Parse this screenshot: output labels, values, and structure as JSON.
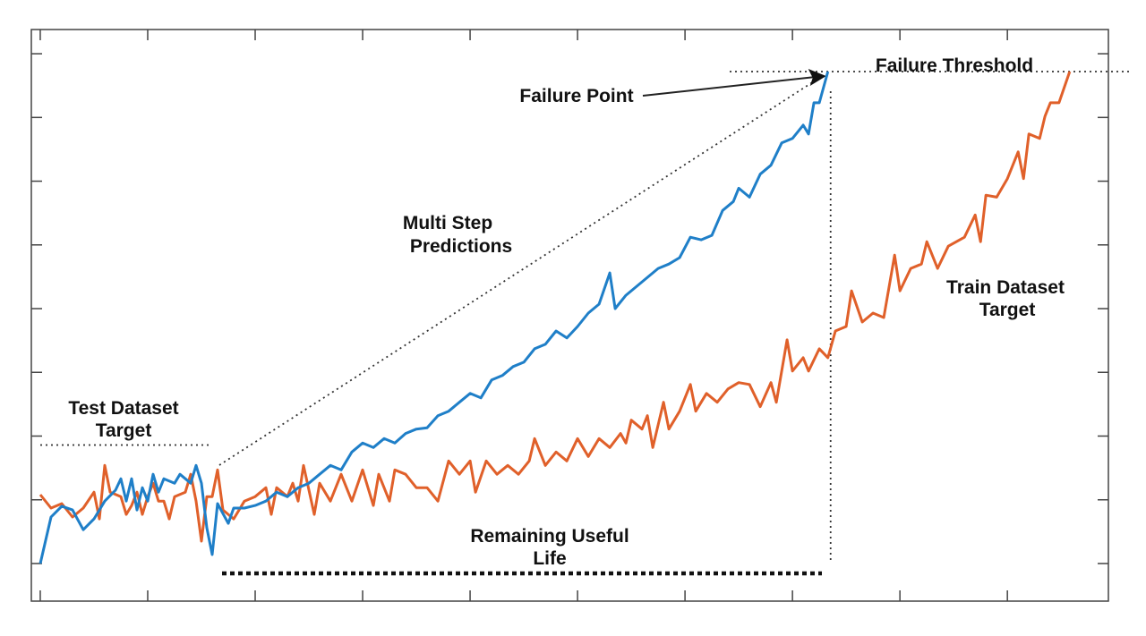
{
  "chart_data": {
    "type": "line",
    "title": "",
    "xlabel": "",
    "ylabel": "",
    "xlim": [
      -0.83,
      99.4
    ],
    "ylim": [
      -0.59,
      8.38
    ],
    "x_ticks": [
      0,
      10,
      20,
      30,
      40,
      50,
      60,
      70,
      80,
      90
    ],
    "y_ticks": [
      0,
      1,
      2,
      3,
      4,
      5,
      6,
      7,
      8
    ],
    "tick_labels_shown": false,
    "grid": false,
    "colors": {
      "predictions": "#1f7fc8",
      "train_target": "#e0602a",
      "annotation": "#222222"
    },
    "series": [
      {
        "name": "Multi Step Predictions",
        "color": "#1f7fc8",
        "x": [
          0,
          1,
          2,
          3,
          4,
          5,
          6,
          7,
          7.5,
          8,
          8.5,
          9,
          9.5,
          10,
          10.5,
          11,
          11.5,
          12.5,
          13,
          14,
          14.5,
          15,
          15.5,
          16,
          16.5,
          17.5,
          18,
          19,
          20,
          21,
          22,
          23,
          24,
          25,
          26,
          27,
          28,
          29,
          30,
          31,
          32,
          33,
          34,
          35,
          36,
          37,
          38,
          39,
          40,
          41,
          42,
          43,
          44,
          45,
          46,
          47,
          48,
          49,
          50,
          51,
          52,
          53,
          53.5,
          54.5,
          55.5,
          56.5,
          57.5,
          58.5,
          59.5,
          60.5,
          61.5,
          62.5,
          63.5,
          64.5,
          65,
          66,
          67,
          68,
          69,
          70,
          71,
          71.5,
          72,
          72.5,
          73.3
        ],
        "y": [
          0,
          0.73,
          0.9,
          0.84,
          0.53,
          0.7,
          0.98,
          1.15,
          1.33,
          0.98,
          1.33,
          0.84,
          1.19,
          0.98,
          1.4,
          1.12,
          1.33,
          1.26,
          1.4,
          1.26,
          1.54,
          1.26,
          0.56,
          0.14,
          0.94,
          0.63,
          0.87,
          0.87,
          0.91,
          0.98,
          1.12,
          1.05,
          1.19,
          1.26,
          1.4,
          1.54,
          1.47,
          1.75,
          1.89,
          1.82,
          1.96,
          1.89,
          2.04,
          2.11,
          2.13,
          2.32,
          2.39,
          2.53,
          2.67,
          2.6,
          2.88,
          2.95,
          3.09,
          3.16,
          3.37,
          3.44,
          3.65,
          3.54,
          3.72,
          3.93,
          4.07,
          4.56,
          4.0,
          4.21,
          4.35,
          4.49,
          4.63,
          4.7,
          4.8,
          5.12,
          5.08,
          5.15,
          5.54,
          5.68,
          5.89,
          5.75,
          6.11,
          6.25,
          6.6,
          6.67,
          6.88,
          6.74,
          7.23,
          7.23,
          7.72
        ]
      },
      {
        "name": "Train Dataset Target",
        "color": "#e0602a",
        "x": [
          0,
          1,
          2,
          3,
          4,
          5,
          5.5,
          6,
          6.5,
          7.5,
          8,
          8.5,
          9,
          9.5,
          10,
          10.5,
          11,
          11.5,
          12,
          12.5,
          13.5,
          14,
          14.5,
          15,
          15.5,
          16,
          16.5,
          17,
          18,
          19,
          20,
          21,
          21.5,
          22,
          23,
          23.5,
          24,
          24.5,
          25.5,
          26,
          27,
          28,
          29,
          30,
          31,
          31.5,
          32.5,
          33,
          34,
          35,
          36,
          37,
          38,
          39,
          40,
          40.5,
          41.5,
          42.5,
          43.5,
          44.5,
          45.5,
          46,
          47,
          48,
          49,
          50,
          51,
          52,
          53,
          54,
          54.5,
          55,
          56,
          56.5,
          57,
          58,
          58.5,
          59.5,
          60.5,
          61,
          62,
          63,
          64,
          65,
          66,
          67,
          68,
          68.5,
          69.5,
          70,
          71,
          71.5,
          72.5,
          73.3,
          74,
          75,
          75.5,
          76.5,
          77.5,
          78.5,
          79.5,
          80,
          81,
          82,
          82.5,
          83.5,
          84.5,
          86,
          87,
          87.5,
          88,
          89,
          90,
          91,
          91.5,
          92,
          93,
          93.5,
          94,
          94.8,
          95.8
        ],
        "y": [
          1.08,
          0.87,
          0.94,
          0.73,
          0.87,
          1.12,
          0.7,
          1.54,
          1.12,
          1.05,
          0.77,
          0.91,
          1.12,
          0.77,
          1.05,
          1.26,
          0.98,
          0.98,
          0.7,
          1.05,
          1.12,
          1.4,
          0.98,
          0.35,
          1.05,
          1.05,
          1.47,
          0.84,
          0.7,
          0.98,
          1.05,
          1.19,
          0.77,
          1.19,
          1.05,
          1.26,
          0.98,
          1.54,
          0.77,
          1.26,
          0.98,
          1.4,
          0.98,
          1.47,
          0.91,
          1.4,
          0.98,
          1.47,
          1.4,
          1.19,
          1.19,
          0.98,
          1.61,
          1.4,
          1.61,
          1.12,
          1.61,
          1.4,
          1.54,
          1.4,
          1.61,
          1.96,
          1.54,
          1.75,
          1.61,
          1.96,
          1.68,
          1.96,
          1.82,
          2.04,
          1.89,
          2.25,
          2.11,
          2.32,
          1.82,
          2.53,
          2.11,
          2.39,
          2.81,
          2.39,
          2.67,
          2.53,
          2.74,
          2.84,
          2.81,
          2.46,
          2.84,
          2.53,
          3.51,
          3.02,
          3.23,
          3.02,
          3.37,
          3.23,
          3.65,
          3.72,
          4.28,
          3.79,
          3.93,
          3.86,
          4.84,
          4.28,
          4.63,
          4.7,
          5.05,
          4.63,
          4.98,
          5.12,
          5.47,
          5.05,
          5.78,
          5.75,
          6.04,
          6.46,
          6.04,
          6.74,
          6.67,
          7.02,
          7.23,
          7.23,
          7.72
        ]
      }
    ],
    "annotations": {
      "failure_point": "Failure Point",
      "failure_threshold": "Failure Threshold",
      "multi_step_line1": "Multi Step",
      "multi_step_line2": "Predictions",
      "train_target_line1": "Train Dataset",
      "train_target_line2": "Target",
      "test_target_line1": "Test Dataset",
      "test_target_line2": "Target",
      "rul_line1": "Remaining Useful",
      "rul_line2": "Life"
    },
    "failure_threshold_value": 7.72,
    "failure_point": {
      "x": 73.3,
      "y": 7.72
    },
    "test_target_level": 1.86
  }
}
